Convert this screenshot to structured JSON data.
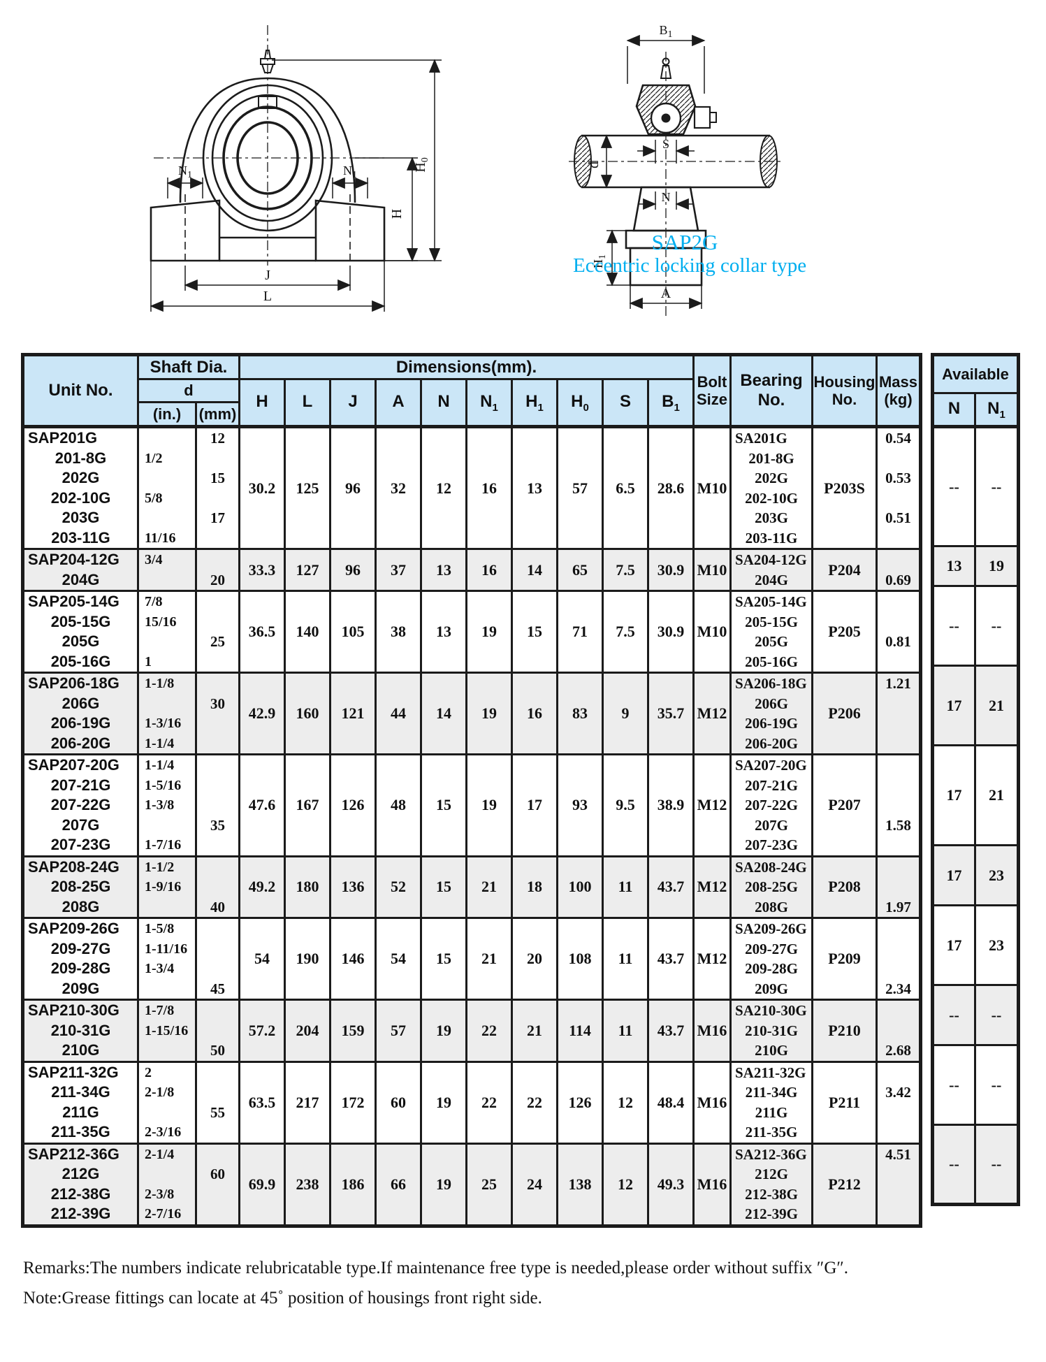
{
  "colors": {
    "header_bg": "#cbe6f7",
    "row_shade": "#ededed",
    "line": "#1b1b1b",
    "caption_accent": "#00aeef"
  },
  "diagrams": {
    "caption_model": "SAP2G",
    "caption_type": "Eccentric locking collar type",
    "front": {
      "n1_left": {
        "t": "N",
        "s": "1"
      },
      "n1_right": {
        "t": "N",
        "s": "1"
      },
      "h": "H",
      "h0": {
        "t": "H",
        "s": "0"
      },
      "j": "J",
      "l": "L"
    },
    "side": {
      "b1": {
        "t": "B",
        "s": "1"
      },
      "s": "S",
      "d": "d",
      "n": "N",
      "h1": {
        "t": "H",
        "s": "1"
      },
      "a": "A"
    }
  },
  "table": {
    "headers": {
      "unit_no": "Unit No.",
      "shaft_dia": "Shaft Dia.",
      "d": "d",
      "in": "(in.)",
      "mm": "(mm)",
      "dimensions": "Dimensions(mm).",
      "bolt_size": "Bolt\nSize",
      "bearing_no": "Bearing\nNo.",
      "housing_no": "Housing\nNo.",
      "mass_kg": "Mass\n(kg)",
      "available": "Available",
      "avail_n": {
        "t": "N",
        "s": ""
      },
      "avail_n1": {
        "t": "N",
        "s": "1"
      },
      "dim_headers": [
        {
          "t": "H",
          "s": ""
        },
        {
          "t": "L",
          "s": ""
        },
        {
          "t": "J",
          "s": ""
        },
        {
          "t": "A",
          "s": ""
        },
        {
          "t": "N",
          "s": ""
        },
        {
          "t": "N",
          "s": "1"
        },
        {
          "t": "H",
          "s": "1"
        },
        {
          "t": "H",
          "s": "0"
        },
        {
          "t": "S",
          "s": ""
        },
        {
          "t": "B",
          "s": "1"
        }
      ]
    },
    "rows": [
      {
        "unit_lines": [
          "SAP201G",
          "201-8G",
          "202G",
          "202-10G",
          "203G",
          "203-11G"
        ],
        "in_lines": [
          "",
          "1/2",
          "",
          "5/8",
          "",
          "11/16"
        ],
        "mm_lines": [
          "12",
          "",
          "15",
          "",
          "17",
          ""
        ],
        "dims": {
          "H": "30.2",
          "L": "125",
          "J": "96",
          "A": "32",
          "N": "12",
          "N1": "16",
          "H1": "13",
          "H0": "57",
          "S": "6.5",
          "B1": "28.6"
        },
        "bolt": "M10",
        "bearing_lines": [
          "SA201G",
          "201-8G",
          "202G",
          "202-10G",
          "203G",
          "203-11G"
        ],
        "housing": "P203S",
        "mass_lines": [
          "0.54",
          "",
          "0.53",
          "",
          "0.51",
          ""
        ],
        "avail_n": "--",
        "avail_n1": "--"
      },
      {
        "unit_lines": [
          "SAP204-12G",
          "204G"
        ],
        "in_lines": [
          "3/4",
          ""
        ],
        "mm_lines": [
          "",
          "20"
        ],
        "dims": {
          "H": "33.3",
          "L": "127",
          "J": "96",
          "A": "37",
          "N": "13",
          "N1": "16",
          "H1": "14",
          "H0": "65",
          "S": "7.5",
          "B1": "30.9"
        },
        "bolt": "M10",
        "bearing_lines": [
          "SA204-12G",
          "204G"
        ],
        "housing": "P204",
        "mass_lines": [
          "",
          "0.69"
        ],
        "avail_n": "13",
        "avail_n1": "19"
      },
      {
        "unit_lines": [
          "SAP205-14G",
          "205-15G",
          "205G",
          "205-16G"
        ],
        "in_lines": [
          "7/8",
          "15/16",
          "",
          "1"
        ],
        "mm_lines": [
          "",
          "",
          "25",
          ""
        ],
        "dims": {
          "H": "36.5",
          "L": "140",
          "J": "105",
          "A": "38",
          "N": "13",
          "N1": "19",
          "H1": "15",
          "H0": "71",
          "S": "7.5",
          "B1": "30.9"
        },
        "bolt": "M10",
        "bearing_lines": [
          "SA205-14G",
          "205-15G",
          "205G",
          "205-16G"
        ],
        "housing": "P205",
        "mass_lines": [
          "",
          "",
          "0.81",
          ""
        ],
        "avail_n": "--",
        "avail_n1": "--"
      },
      {
        "unit_lines": [
          "SAP206-18G",
          "206G",
          "206-19G",
          "206-20G"
        ],
        "in_lines": [
          "1-1/8",
          "",
          "1-3/16",
          "1-1/4"
        ],
        "mm_lines": [
          "",
          "30",
          "",
          ""
        ],
        "dims": {
          "H": "42.9",
          "L": "160",
          "J": "121",
          "A": "44",
          "N": "14",
          "N1": "19",
          "H1": "16",
          "H0": "83",
          "S": "9",
          "B1": "35.7"
        },
        "bolt": "M12",
        "bearing_lines": [
          "SA206-18G",
          "206G",
          "206-19G",
          "206-20G"
        ],
        "housing": "P206",
        "mass_lines": [
          "1.21",
          "",
          "",
          ""
        ],
        "avail_n": "17",
        "avail_n1": "21"
      },
      {
        "unit_lines": [
          "SAP207-20G",
          "207-21G",
          "207-22G",
          "207G",
          "207-23G"
        ],
        "in_lines": [
          "1-1/4",
          "1-5/16",
          "1-3/8",
          "",
          "1-7/16"
        ],
        "mm_lines": [
          "",
          "",
          "",
          "35",
          ""
        ],
        "dims": {
          "H": "47.6",
          "L": "167",
          "J": "126",
          "A": "48",
          "N": "15",
          "N1": "19",
          "H1": "17",
          "H0": "93",
          "S": "9.5",
          "B1": "38.9"
        },
        "bolt": "M12",
        "bearing_lines": [
          "SA207-20G",
          "207-21G",
          "207-22G",
          "207G",
          "207-23G"
        ],
        "housing": "P207",
        "mass_lines": [
          "",
          "",
          "",
          "1.58",
          ""
        ],
        "avail_n": "17",
        "avail_n1": "21"
      },
      {
        "unit_lines": [
          "SAP208-24G",
          "208-25G",
          "208G"
        ],
        "in_lines": [
          "1-1/2",
          "1-9/16",
          ""
        ],
        "mm_lines": [
          "",
          "",
          "40"
        ],
        "dims": {
          "H": "49.2",
          "L": "180",
          "J": "136",
          "A": "52",
          "N": "15",
          "N1": "21",
          "H1": "18",
          "H0": "100",
          "S": "11",
          "B1": "43.7"
        },
        "bolt": "M12",
        "bearing_lines": [
          "SA208-24G",
          "208-25G",
          "208G"
        ],
        "housing": "P208",
        "mass_lines": [
          "",
          "",
          "1.97"
        ],
        "avail_n": "17",
        "avail_n1": "23"
      },
      {
        "unit_lines": [
          "SAP209-26G",
          "209-27G",
          "209-28G",
          "209G"
        ],
        "in_lines": [
          "1-5/8",
          "1-11/16",
          "1-3/4",
          ""
        ],
        "mm_lines": [
          "",
          "",
          "",
          "45"
        ],
        "dims": {
          "H": "54",
          "L": "190",
          "J": "146",
          "A": "54",
          "N": "15",
          "N1": "21",
          "H1": "20",
          "H0": "108",
          "S": "11",
          "B1": "43.7"
        },
        "bolt": "M12",
        "bearing_lines": [
          "SA209-26G",
          "209-27G",
          "209-28G",
          "209G"
        ],
        "housing": "P209",
        "mass_lines": [
          "",
          "",
          "",
          "2.34"
        ],
        "avail_n": "17",
        "avail_n1": "23"
      },
      {
        "unit_lines": [
          "SAP210-30G",
          "210-31G",
          "210G"
        ],
        "in_lines": [
          "1-7/8",
          "1-15/16",
          ""
        ],
        "mm_lines": [
          "",
          "",
          "50"
        ],
        "dims": {
          "H": "57.2",
          "L": "204",
          "J": "159",
          "A": "57",
          "N": "19",
          "N1": "22",
          "H1": "21",
          "H0": "114",
          "S": "11",
          "B1": "43.7"
        },
        "bolt": "M16",
        "bearing_lines": [
          "SA210-30G",
          "210-31G",
          "210G"
        ],
        "housing": "P210",
        "mass_lines": [
          "",
          "",
          "2.68"
        ],
        "avail_n": "--",
        "avail_n1": "--"
      },
      {
        "unit_lines": [
          "SAP211-32G",
          "211-34G",
          "211G",
          "211-35G"
        ],
        "in_lines": [
          "2",
          "2-1/8",
          "",
          "2-3/16"
        ],
        "mm_lines": [
          "",
          "",
          "55",
          ""
        ],
        "dims": {
          "H": "63.5",
          "L": "217",
          "J": "172",
          "A": "60",
          "N": "19",
          "N1": "22",
          "H1": "22",
          "H0": "126",
          "S": "12",
          "B1": "48.4"
        },
        "bolt": "M16",
        "bearing_lines": [
          "SA211-32G",
          "211-34G",
          "211G",
          "211-35G"
        ],
        "housing": "P211",
        "mass_lines": [
          "",
          "3.42",
          "",
          ""
        ],
        "avail_n": "--",
        "avail_n1": "--"
      },
      {
        "unit_lines": [
          "SAP212-36G",
          "212G",
          "212-38G",
          "212-39G"
        ],
        "in_lines": [
          "2-1/4",
          "",
          "2-3/8",
          "2-7/16"
        ],
        "mm_lines": [
          "",
          "60",
          "",
          ""
        ],
        "dims": {
          "H": "69.9",
          "L": "238",
          "J": "186",
          "A": "66",
          "N": "19",
          "N1": "25",
          "H1": "24",
          "H0": "138",
          "S": "12",
          "B1": "49.3"
        },
        "bolt": "M16",
        "bearing_lines": [
          "SA212-36G",
          "212G",
          "212-38G",
          "212-39G"
        ],
        "housing": "P212",
        "mass_lines": [
          "4.51",
          "",
          "",
          ""
        ],
        "avail_n": "--",
        "avail_n1": "--"
      }
    ]
  },
  "remarks": {
    "line1": "Remarks:The numbers indicate relubricatable type.If maintenance free type is needed,please order without suffix ″G″.",
    "line2": "Note:Grease fittings can locate at 45˚ position of housings front right side."
  }
}
